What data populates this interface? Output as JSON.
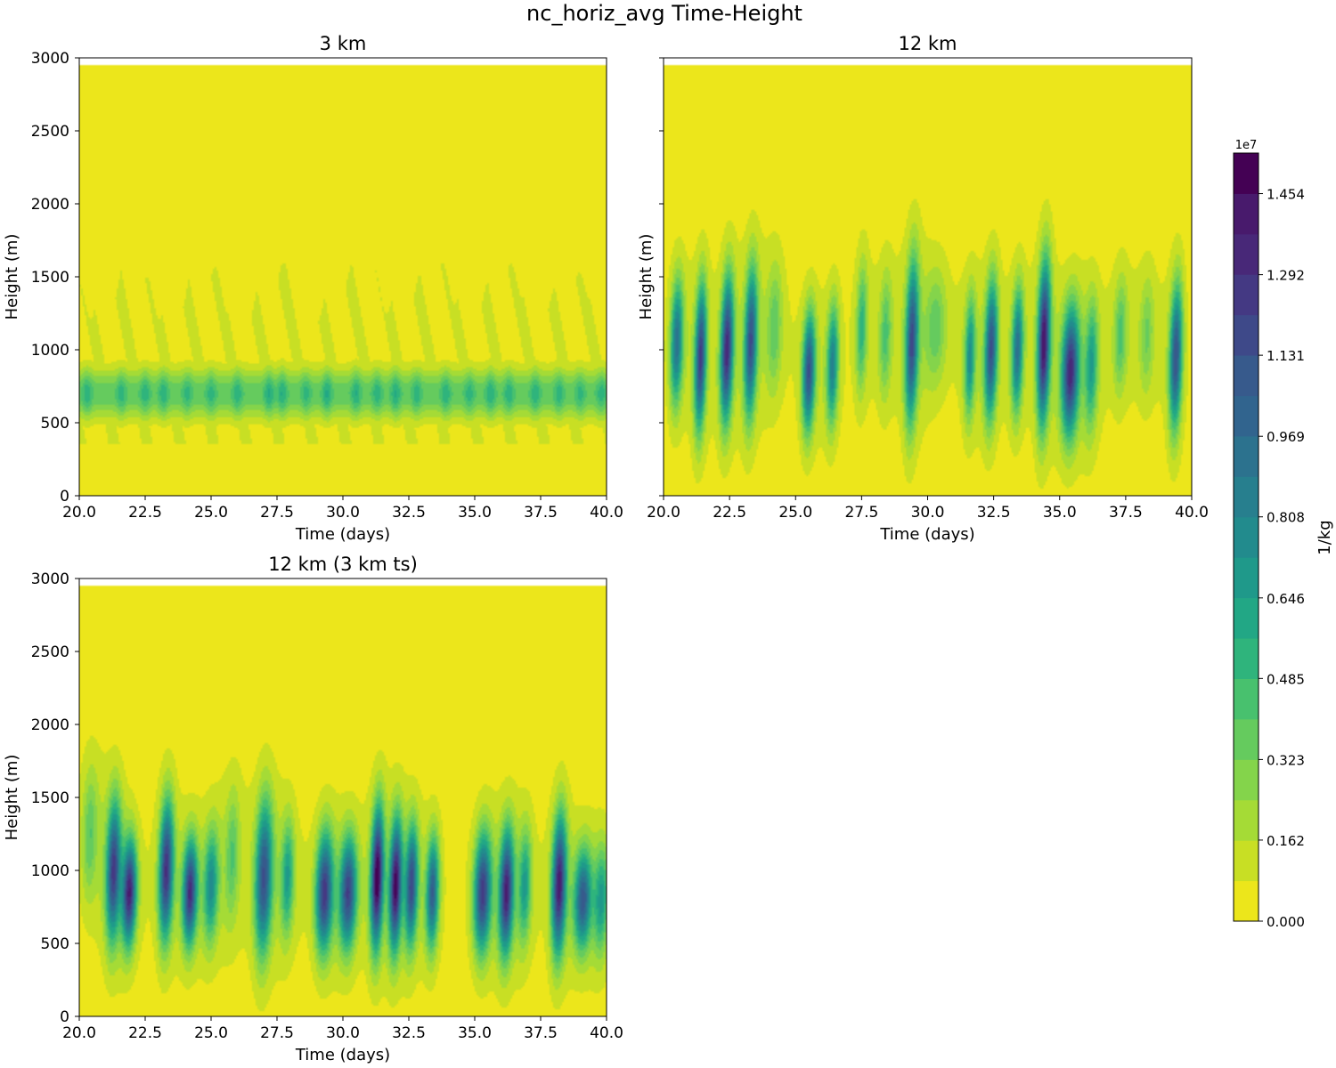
{
  "figure_title": "nc_horiz_avg Time-Height",
  "colors": {
    "levels": [
      "#ece61b",
      "#c8df24",
      "#a5db36",
      "#84d44b",
      "#65cb5e",
      "#48c16e",
      "#2fb47c",
      "#22a785",
      "#1f998a",
      "#228b8d",
      "#277f8e",
      "#2c728e",
      "#31648e",
      "#375a8c",
      "#3e4989",
      "#443983",
      "#482878",
      "#481a6c",
      "#440154"
    ]
  },
  "chart_data": {
    "type": "contourf",
    "panels": [
      {
        "id": "3km",
        "title": "3 km",
        "xlabel": "Time (days)",
        "ylabel": "Height (m)",
        "xlim": [
          20.0,
          40.0
        ],
        "ylim": [
          0,
          3000
        ],
        "model_top": 2950,
        "xticks": [
          "20.0",
          "22.5",
          "25.0",
          "27.5",
          "30.0",
          "32.5",
          "35.0",
          "37.5",
          "40.0"
        ],
        "yticks": [
          "0",
          "500",
          "1000",
          "1500",
          "2000",
          "2500",
          "3000"
        ],
        "mode": "layer",
        "layer_center_m": 700,
        "layer_halfwidth_m": 170,
        "cloud_top_m": 1400,
        "peak_value": 0.85,
        "pulse_times": [
          20.3,
          21.6,
          22.5,
          23.2,
          24.1,
          25.0,
          26.0,
          27.2,
          27.7,
          28.6,
          29.4,
          30.5,
          31.3,
          32.0,
          32.8,
          33.9,
          34.8,
          35.6,
          36.3,
          37.3,
          38.2,
          39.0,
          39.8
        ]
      },
      {
        "id": "12km",
        "title": "12 km",
        "xlabel": "Time (days)",
        "ylabel": "Height (m)",
        "xlim": [
          20.0,
          40.0
        ],
        "ylim": [
          0,
          3000
        ],
        "model_top": 2950,
        "xticks": [
          "20.0",
          "22.5",
          "25.0",
          "27.5",
          "30.0",
          "32.5",
          "35.0",
          "37.5",
          "40.0"
        ],
        "yticks": [
          "0",
          "500",
          "1000",
          "1500",
          "2000",
          "2500",
          "3000"
        ],
        "mode": "plumes",
        "plumes": [
          {
            "t": 20.5,
            "peak": 0.8,
            "center_m": 1050,
            "halfwidth_m": 500,
            "width_d": 0.22
          },
          {
            "t": 21.4,
            "peak": 1.1,
            "center_m": 950,
            "halfwidth_m": 580,
            "width_d": 0.2
          },
          {
            "t": 22.4,
            "peak": 1.2,
            "center_m": 1000,
            "halfwidth_m": 580,
            "width_d": 0.22
          },
          {
            "t": 23.3,
            "peak": 1.0,
            "center_m": 1050,
            "halfwidth_m": 600,
            "width_d": 0.22
          },
          {
            "t": 24.2,
            "peak": 0.25,
            "center_m": 1150,
            "halfwidth_m": 500,
            "width_d": 0.25
          },
          {
            "t": 25.5,
            "peak": 1.0,
            "center_m": 850,
            "halfwidth_m": 480,
            "width_d": 0.22
          },
          {
            "t": 26.4,
            "peak": 0.7,
            "center_m": 900,
            "halfwidth_m": 480,
            "width_d": 0.2
          },
          {
            "t": 27.5,
            "peak": 0.4,
            "center_m": 1150,
            "halfwidth_m": 500,
            "width_d": 0.18
          },
          {
            "t": 28.4,
            "peak": 0.3,
            "center_m": 1100,
            "halfwidth_m": 480,
            "width_d": 0.2
          },
          {
            "t": 29.4,
            "peak": 1.0,
            "center_m": 1050,
            "halfwidth_m": 650,
            "width_d": 0.22
          },
          {
            "t": 30.3,
            "peak": 0.25,
            "center_m": 1150,
            "halfwidth_m": 450,
            "width_d": 0.35
          },
          {
            "t": 31.6,
            "peak": 0.6,
            "center_m": 950,
            "halfwidth_m": 480,
            "width_d": 0.18
          },
          {
            "t": 32.4,
            "peak": 1.0,
            "center_m": 1000,
            "halfwidth_m": 560,
            "width_d": 0.22
          },
          {
            "t": 33.4,
            "peak": 0.8,
            "center_m": 1000,
            "halfwidth_m": 500,
            "width_d": 0.2
          },
          {
            "t": 34.4,
            "peak": 1.3,
            "center_m": 1050,
            "halfwidth_m": 650,
            "width_d": 0.22
          },
          {
            "t": 35.4,
            "peak": 1.2,
            "center_m": 850,
            "halfwidth_m": 520,
            "width_d": 0.3
          },
          {
            "t": 36.2,
            "peak": 0.5,
            "center_m": 900,
            "halfwidth_m": 500,
            "width_d": 0.22
          },
          {
            "t": 37.3,
            "peak": 0.3,
            "center_m": 1100,
            "halfwidth_m": 450,
            "width_d": 0.22
          },
          {
            "t": 38.3,
            "peak": 0.2,
            "center_m": 1100,
            "halfwidth_m": 450,
            "width_d": 0.22
          },
          {
            "t": 39.4,
            "peak": 1.0,
            "center_m": 950,
            "halfwidth_m": 580,
            "width_d": 0.22
          }
        ]
      },
      {
        "id": "12km_3kmts",
        "title": "12 km (3 km ts)",
        "xlabel": "Time (days)",
        "ylabel": "Height (m)",
        "xlim": [
          20.0,
          40.0
        ],
        "ylim": [
          0,
          3000
        ],
        "model_top": 2950,
        "xticks": [
          "20.0",
          "22.5",
          "25.0",
          "27.5",
          "30.0",
          "32.5",
          "35.0",
          "37.5",
          "40.0"
        ],
        "yticks": [
          "0",
          "500",
          "1000",
          "1500",
          "2000",
          "2500",
          "3000"
        ],
        "mode": "plumes",
        "plumes": [
          {
            "t": 20.4,
            "peak": 0.25,
            "center_m": 1250,
            "halfwidth_m": 500,
            "width_d": 0.25
          },
          {
            "t": 21.3,
            "peak": 1.05,
            "center_m": 1000,
            "halfwidth_m": 560,
            "width_d": 0.25
          },
          {
            "t": 21.9,
            "peak": 1.2,
            "center_m": 850,
            "halfwidth_m": 420,
            "width_d": 0.25
          },
          {
            "t": 23.3,
            "peak": 1.15,
            "center_m": 1000,
            "halfwidth_m": 560,
            "width_d": 0.25
          },
          {
            "t": 24.2,
            "peak": 1.15,
            "center_m": 850,
            "halfwidth_m": 420,
            "width_d": 0.25
          },
          {
            "t": 25.0,
            "peak": 0.6,
            "center_m": 900,
            "halfwidth_m": 450,
            "width_d": 0.25
          },
          {
            "t": 25.8,
            "peak": 0.25,
            "center_m": 1100,
            "halfwidth_m": 500,
            "width_d": 0.22
          },
          {
            "t": 27.0,
            "peak": 1.0,
            "center_m": 950,
            "halfwidth_m": 620,
            "width_d": 0.3
          },
          {
            "t": 27.9,
            "peak": 0.5,
            "center_m": 950,
            "halfwidth_m": 450,
            "width_d": 0.22
          },
          {
            "t": 29.3,
            "peak": 1.1,
            "center_m": 850,
            "halfwidth_m": 480,
            "width_d": 0.3
          },
          {
            "t": 30.2,
            "peak": 1.05,
            "center_m": 850,
            "halfwidth_m": 450,
            "width_d": 0.3
          },
          {
            "t": 31.3,
            "peak": 1.4,
            "center_m": 950,
            "halfwidth_m": 560,
            "width_d": 0.22
          },
          {
            "t": 32.0,
            "peak": 1.3,
            "center_m": 900,
            "halfwidth_m": 520,
            "width_d": 0.22
          },
          {
            "t": 32.6,
            "peak": 1.0,
            "center_m": 900,
            "halfwidth_m": 480,
            "width_d": 0.22
          },
          {
            "t": 33.4,
            "peak": 0.9,
            "center_m": 850,
            "halfwidth_m": 450,
            "width_d": 0.22
          },
          {
            "t": 35.3,
            "peak": 1.1,
            "center_m": 850,
            "halfwidth_m": 480,
            "width_d": 0.3
          },
          {
            "t": 36.2,
            "peak": 1.2,
            "center_m": 850,
            "halfwidth_m": 500,
            "width_d": 0.25
          },
          {
            "t": 36.9,
            "peak": 0.5,
            "center_m": 900,
            "halfwidth_m": 450,
            "width_d": 0.22
          },
          {
            "t": 38.2,
            "peak": 1.25,
            "center_m": 900,
            "halfwidth_m": 560,
            "width_d": 0.25
          },
          {
            "t": 39.1,
            "peak": 0.9,
            "center_m": 800,
            "halfwidth_m": 400,
            "width_d": 0.3
          },
          {
            "t": 39.8,
            "peak": 0.5,
            "center_m": 800,
            "halfwidth_m": 420,
            "width_d": 0.25
          }
        ]
      }
    ],
    "colorbar": {
      "label": "1/kg",
      "exponent": "1e7",
      "vmin": 0.0,
      "vmax": 1.535,
      "num_levels": 19,
      "ticks": [
        "0.000",
        "0.162",
        "0.323",
        "0.485",
        "0.646",
        "0.808",
        "0.969",
        "1.131",
        "1.292",
        "1.454"
      ]
    }
  }
}
